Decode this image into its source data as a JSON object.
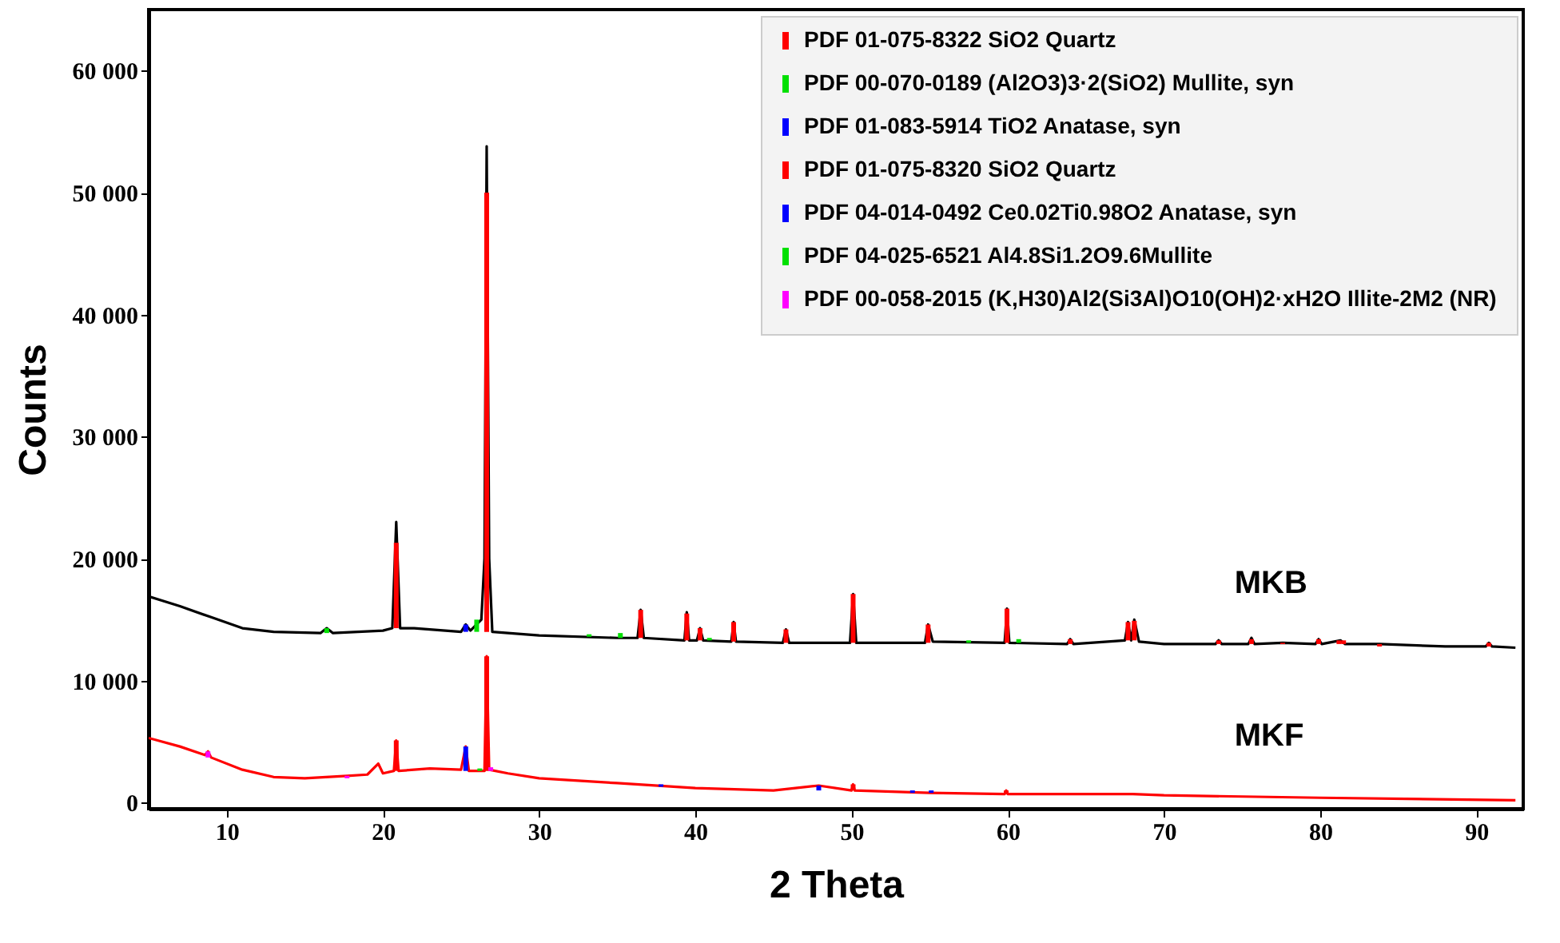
{
  "chart_data": {
    "type": "line",
    "xlabel": "2 Theta",
    "ylabel": "Counts",
    "xlim": [
      5,
      93
    ],
    "ylim": [
      -500,
      65000
    ],
    "xticks": [
      10,
      20,
      30,
      40,
      50,
      60,
      70,
      80,
      90
    ],
    "yticks": [
      {
        "value": 0,
        "label": "0"
      },
      {
        "value": 10000,
        "label": "10 000"
      },
      {
        "value": 20000,
        "label": "20 000"
      },
      {
        "value": 30000,
        "label": "30 000"
      },
      {
        "value": 40000,
        "label": "40 000"
      },
      {
        "value": 50000,
        "label": "50 000"
      },
      {
        "value": 60000,
        "label": "60 000"
      }
    ],
    "grid": false,
    "legend": "top right",
    "marker": "none",
    "line_style": "solid",
    "annotations": [
      "MKB",
      "MKF"
    ],
    "series": [
      {
        "color": "#000000",
        "x": [
          5,
          7,
          9,
          11,
          13,
          16,
          16.4,
          16.8,
          20,
          20.6,
          20.85,
          21.1,
          22,
          25,
          25.3,
          25.6,
          26.3,
          26.5,
          26.64,
          26.8,
          27,
          30,
          35,
          36.3,
          36.5,
          36.7,
          39.3,
          39.45,
          39.6,
          40.1,
          40.3,
          40.5,
          42.3,
          42.45,
          42.6,
          45.6,
          45.8,
          46,
          49.9,
          50.1,
          50.3,
          54.7,
          54.9,
          55.2,
          59.8,
          59.95,
          60.1,
          63.8,
          64,
          64.2,
          67.5,
          67.7,
          67.9,
          68.1,
          68.4,
          70,
          73.3,
          73.5,
          73.7,
          75.4,
          75.6,
          75.8,
          77.6,
          79.7,
          79.9,
          80.1,
          81.3,
          81.6,
          83.8,
          88,
          90.6,
          90.8,
          91,
          92.5
        ],
        "values": [
          16900,
          16100,
          15200,
          14300,
          14000,
          13900,
          14300,
          13900,
          14100,
          14300,
          23000,
          14300,
          14300,
          14000,
          14600,
          14100,
          15000,
          20000,
          53800,
          20000,
          14000,
          13700,
          13500,
          13500,
          15800,
          13500,
          13300,
          15600,
          13300,
          13300,
          14300,
          13300,
          13200,
          14800,
          13200,
          13100,
          14200,
          13100,
          13100,
          17100,
          13100,
          13100,
          14600,
          13200,
          13100,
          15900,
          13100,
          13000,
          13400,
          13000,
          13300,
          14800,
          13300,
          15000,
          13200,
          13000,
          13000,
          13300,
          13000,
          13000,
          13500,
          13000,
          13100,
          13000,
          13400,
          13000,
          13300,
          13000,
          13000,
          12800,
          12800,
          13100,
          12800,
          12700
        ]
      },
      {
        "color": "#ff0000",
        "x": [
          5,
          7,
          8.6,
          8.8,
          9,
          11,
          13,
          15,
          17.7,
          19,
          19.7,
          20,
          20.7,
          20.85,
          21,
          23,
          25,
          25.3,
          25.5,
          26.5,
          26.64,
          26.8,
          28,
          30,
          35,
          40,
          45,
          47.9,
          50,
          50.1,
          50.2,
          55,
          59.8,
          59.9,
          60,
          68,
          70,
          80,
          92.5
        ],
        "values": [
          5300,
          4600,
          3900,
          4200,
          3700,
          2700,
          2100,
          2000,
          2200,
          2300,
          3200,
          2400,
          2600,
          5100,
          2600,
          2800,
          2700,
          4600,
          2600,
          2600,
          12000,
          2700,
          2400,
          2000,
          1600,
          1200,
          1000,
          1400,
          1000,
          1500,
          1000,
          800,
          700,
          1000,
          700,
          700,
          600,
          400,
          200
        ]
      },
      {
        "type": "bar",
        "name": "PDF 01-075-8322 SiO2 Quartz",
        "color": "#ff0000",
        "x": [
          20.85,
          26.64,
          36.5,
          39.45,
          40.3,
          42.45,
          45.8,
          50.1,
          54.9,
          59.95,
          64,
          67.7,
          68.1,
          73.5,
          75.6,
          77.6,
          79.9,
          81.2,
          81.5,
          83.8,
          90.8
        ],
        "base": [
          14300,
          14000,
          13500,
          13300,
          13300,
          13200,
          13100,
          13100,
          13100,
          13100,
          13000,
          13300,
          13300,
          13000,
          13000,
          13000,
          13000,
          13000,
          13000,
          12800,
          12800
        ],
        "values": [
          7000,
          36000,
          2300,
          2200,
          1000,
          1600,
          1100,
          4000,
          1500,
          2800,
          400,
          1500,
          1600,
          300,
          400,
          100,
          400,
          300,
          300,
          200,
          300
        ]
      },
      {
        "type": "bar",
        "name": "PDF 00-070-0189 (Al2O3)3·2(SiO2)  Mullite, syn",
        "color": "#00e000",
        "x": [
          16.4,
          26,
          33.2,
          35.2,
          40.9,
          57.5,
          60.7
        ],
        "base": [
          13900,
          14000,
          13600,
          13500,
          13300,
          13100,
          13100
        ],
        "values": [
          400,
          1000,
          200,
          400,
          200,
          200,
          300
        ]
      },
      {
        "type": "bar",
        "name": "PDF 01-083-5914 TiO2 Anatase, syn",
        "color": "#0000ff",
        "x": [
          25.3
        ],
        "base": [
          14000
        ],
        "values": [
          600
        ]
      },
      {
        "type": "bar",
        "name": "PDF 01-075-8320 SiO2 Quartz",
        "color": "#ff0000",
        "x": [
          20.85,
          26.64,
          50.1,
          59.9
        ],
        "base": [
          2600,
          2600,
          1000,
          700
        ],
        "values": [
          2500,
          9400,
          500,
          300
        ]
      },
      {
        "type": "bar",
        "name": "PDF 04-014-0492 Ce0.02Ti0.98O2 Anatase, syn",
        "color": "#0000ff",
        "x": [
          25.3,
          37.8,
          47.9,
          53.9,
          55.1
        ],
        "base": [
          2600,
          1300,
          1000,
          800,
          800
        ],
        "values": [
          2000,
          200,
          400,
          200,
          200
        ]
      },
      {
        "type": "bar",
        "name": "PDF 04-025-6521 Al4.8Si1.2O9.6Mullite",
        "color": "#00e000",
        "x": [
          26.2
        ],
        "base": [
          2600
        ],
        "values": [
          200
        ]
      },
      {
        "type": "bar",
        "name": "PDF 00-058-2015 (K,H30)Al2(Si3Al)O10(OH)2·xH2O  Illite-2M2 (NR)",
        "color": "#ff00ff",
        "x": [
          8.8,
          17.7,
          26.9
        ],
        "base": [
          3700,
          2000,
          2600
        ],
        "values": [
          500,
          200,
          300
        ]
      }
    ]
  }
}
